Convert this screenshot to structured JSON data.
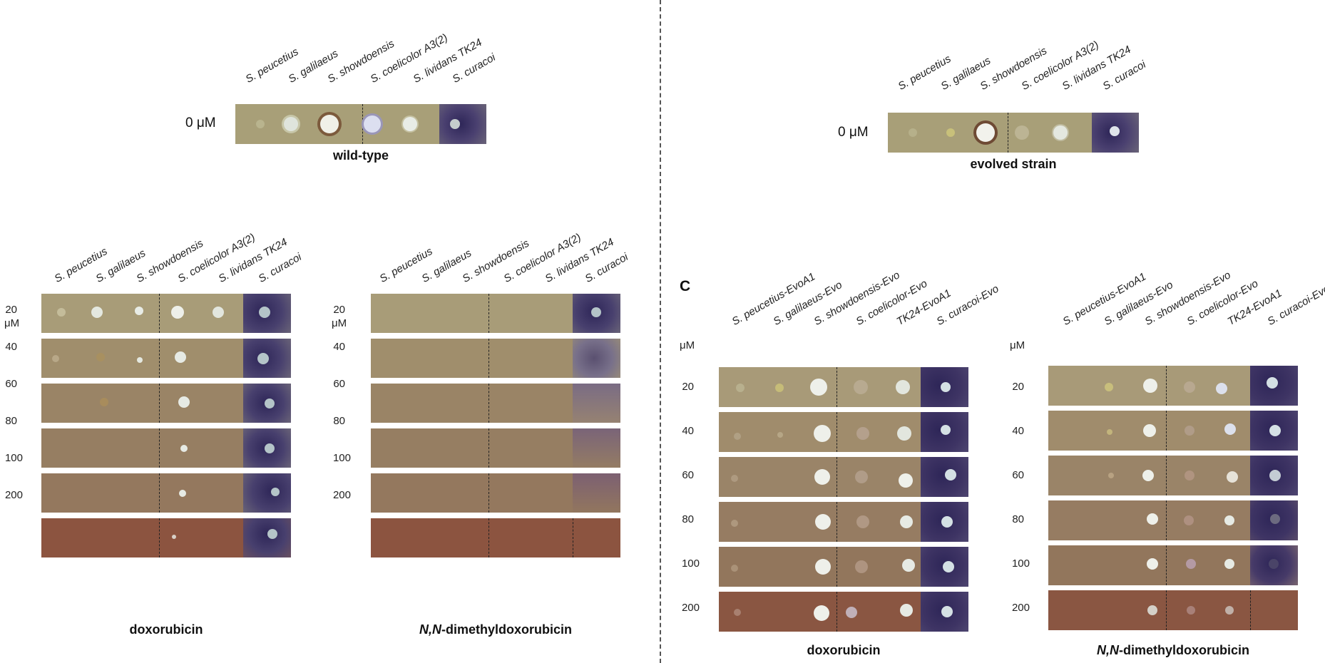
{
  "panel_top_left": {
    "conc_label": "0 μM",
    "strains": [
      "S. peucetius",
      "S. galilaeus",
      "S. showdoensis",
      "S. coelicolor A3(2)",
      "S. lividans TK24",
      "S. curacoi"
    ],
    "caption": "wild-type"
  },
  "panel_top_right": {
    "conc_label": "0 μM",
    "strains": [
      "S. peucetius",
      "S. galilaeus",
      "S. showdoensis",
      "S. coelicolor A3(2)",
      "S. lividans TK24",
      "S. curacoi"
    ],
    "caption": "evolved strain"
  },
  "panel_bottom_left_a": {
    "unit": "μM",
    "strains": [
      "S. peucetius",
      "S. galilaeus",
      "S. showdoensis",
      "S. coelicolor A3(2)",
      "S. lividans TK24",
      "S. curacoi"
    ],
    "concentrations": [
      "20",
      "40",
      "60",
      "80",
      "100",
      "200"
    ],
    "caption": "doxorubicin"
  },
  "panel_bottom_left_b": {
    "unit": "μM",
    "strains": [
      "S. peucetius",
      "S. galilaeus",
      "S. showdoensis",
      "S. coelicolor A3(2)",
      "S. lividans TK24",
      "S. curacoi"
    ],
    "concentrations": [
      "20",
      "40",
      "60",
      "80",
      "100",
      "200"
    ],
    "caption_prefix": "N,N",
    "caption_suffix": "-dimethyldoxorubicin"
  },
  "panel_c": {
    "letter": "C",
    "left": {
      "unit": "μM",
      "strains": [
        "S. peucetius-EvoA1",
        "S. galilaeus-Evo",
        "S. showdoensis-Evo",
        "S. coelicolor-Evo",
        "TK24-EvoA1",
        "S. curacoi-Evo"
      ],
      "concentrations": [
        "20",
        "40",
        "60",
        "80",
        "100",
        "200"
      ],
      "caption": "doxorubicin"
    },
    "right": {
      "unit": "μM",
      "strains": [
        "S. peucetius-EvoA1",
        "S. galilaeus-Evo",
        "S. showdoensis-Evo",
        "S. coelicolor-Evo",
        "TK24-EvoA1",
        "S. curacoi-Evo"
      ],
      "concentrations": [
        "20",
        "40",
        "60",
        "80",
        "100",
        "200"
      ],
      "caption_prefix": "N,N",
      "caption_suffix": "-dimethyldoxorubicin"
    }
  },
  "colors": {
    "agar_light": "#a59a73",
    "agar_mid": "#96785c",
    "agar_dark": "#8c4f3c",
    "purple_halo": "#3a3060",
    "colony_white": "#e8ede8"
  }
}
